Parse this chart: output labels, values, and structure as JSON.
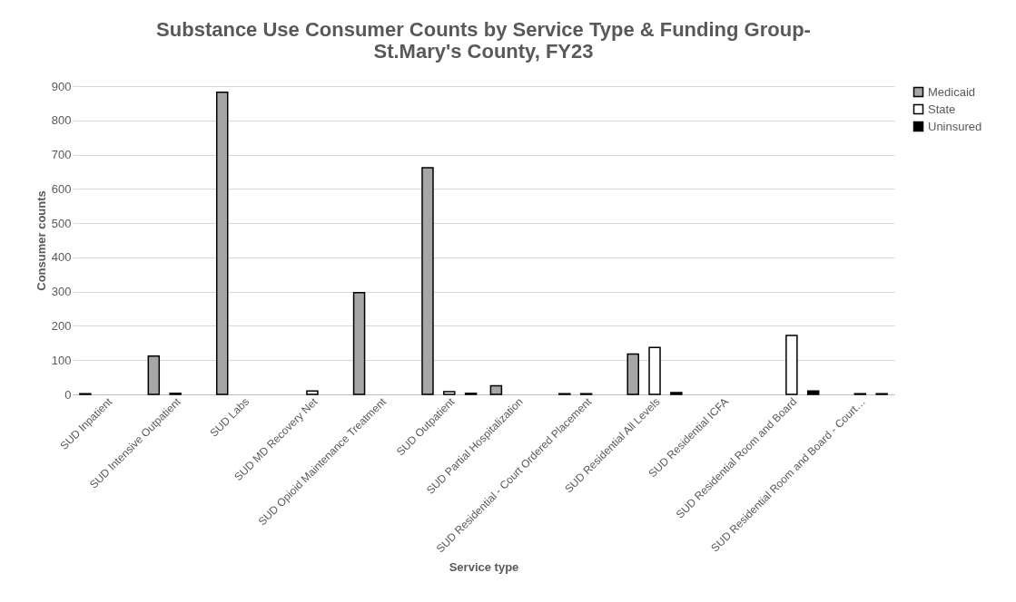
{
  "chart_data": {
    "type": "bar",
    "title": "Substance Use Consumer Counts by Service Type & Funding Group- St.Mary's County, FY23",
    "xlabel": "Service type",
    "ylabel": "Consumer counts",
    "categories": [
      "SUD Inpatient",
      "SUD Intensive Outpatient",
      "SUD Labs",
      "SUD MD Recovery Net",
      "SUD Opioid Maintenance Treatment",
      "SUD Outpatient",
      "SUD Partial Hospitalization",
      "SUD Residential - Court Ordered Placement",
      "SUD Residential All Levels",
      "SUD Residential ICFA",
      "SUD Residential Room and Board",
      "SUD Residential Room and Board - Court…"
    ],
    "series": [
      {
        "name": "Medicaid",
        "color": "#a6a6a6",
        "values": [
          2,
          112,
          882,
          null,
          297,
          662,
          25,
          2,
          118,
          null,
          null,
          null
        ]
      },
      {
        "name": "State",
        "color": "#ffffff",
        "values": [
          null,
          3,
          null,
          10,
          null,
          8,
          null,
          2,
          137,
          null,
          172,
          2
        ]
      },
      {
        "name": "Uninsured",
        "color": "#000000",
        "values": [
          null,
          null,
          null,
          null,
          null,
          3,
          null,
          null,
          5,
          null,
          10,
          2
        ]
      }
    ],
    "ylim": [
      0,
      900
    ],
    "yticks": [
      0,
      100,
      200,
      300,
      400,
      500,
      600,
      700,
      800,
      900
    ],
    "grid": "y",
    "legend": "right"
  }
}
